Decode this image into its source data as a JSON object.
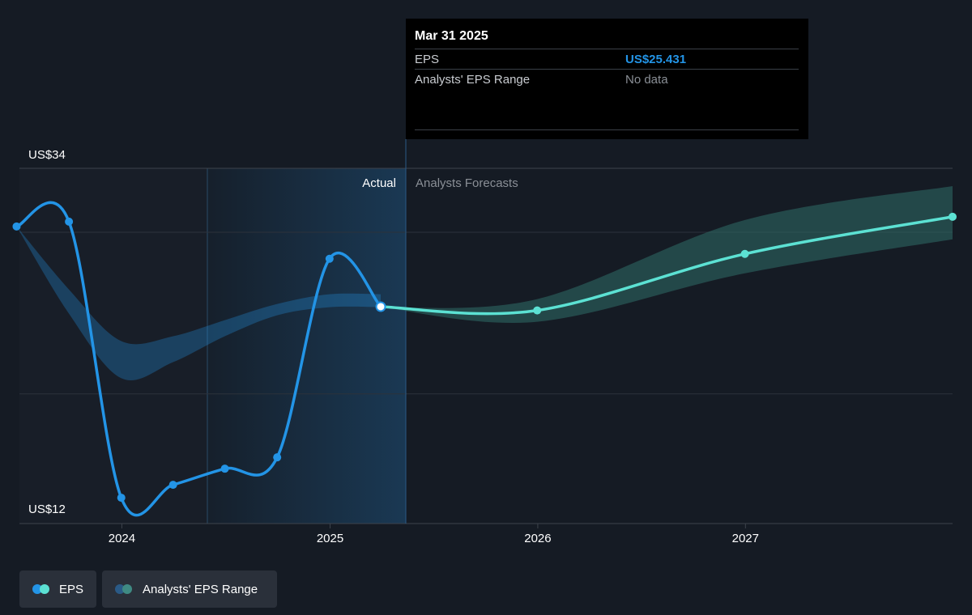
{
  "tooltip": {
    "date": "Mar 31 2025",
    "rows": [
      {
        "label": "EPS",
        "value": "US$25.431"
      },
      {
        "label": "Analysts' EPS Range",
        "value": "No data"
      }
    ]
  },
  "chart_data": {
    "type": "line",
    "x_axis_ticks": [
      "2024",
      "2025",
      "2026",
      "2027"
    ],
    "y_axis_labels": [
      "US$34",
      "US$12"
    ],
    "ylim": [
      12,
      34
    ],
    "regions": {
      "actual_label": "Actual",
      "forecast_label": "Analysts Forecasts"
    },
    "series": [
      {
        "name": "EPS",
        "segment": "actual",
        "color": "#2394e6",
        "points": [
          {
            "x": "2023-06-30",
            "y": 30.4
          },
          {
            "x": "2023-09-30",
            "y": 30.7
          },
          {
            "x": "2023-12-31",
            "y": 13.6
          },
          {
            "x": "2024-03-31",
            "y": 14.4
          },
          {
            "x": "2024-06-30",
            "y": 15.4
          },
          {
            "x": "2024-09-30",
            "y": 16.1
          },
          {
            "x": "2024-12-31",
            "y": 28.4
          },
          {
            "x": "2025-03-31",
            "y": 25.431
          }
        ]
      },
      {
        "name": "EPS",
        "segment": "forecast",
        "color": "#5ce1d3",
        "points": [
          {
            "x": "2025-03-31",
            "y": 25.431
          },
          {
            "x": "2025-12-31",
            "y": 25.2
          },
          {
            "x": "2026-12-31",
            "y": 28.7
          },
          {
            "x": "2027-12-31",
            "y": 31.0
          }
        ]
      }
    ],
    "ranges": [
      {
        "name": "Analysts' EPS Range",
        "segment": "past",
        "color": "#2394e6",
        "points": [
          {
            "x": "2023-06-30",
            "low": 30.4,
            "high": 30.4
          },
          {
            "x": "2023-09-30",
            "low": 25.0,
            "high": 26.5
          },
          {
            "x": "2023-12-31",
            "low": 21.0,
            "high": 23.3
          },
          {
            "x": "2024-03-31",
            "low": 22.0,
            "high": 23.6
          },
          {
            "x": "2024-06-30",
            "low": 23.6,
            "high": 24.6
          },
          {
            "x": "2024-09-30",
            "low": 24.9,
            "high": 25.6
          },
          {
            "x": "2024-12-31",
            "low": 25.4,
            "high": 26.2
          },
          {
            "x": "2025-03-31",
            "low": 25.4,
            "high": 26.2
          }
        ]
      },
      {
        "name": "Analysts' EPS Range",
        "segment": "forecast",
        "color": "#5ce1d3",
        "points": [
          {
            "x": "2025-03-31",
            "low": 25.4,
            "high": 25.4
          },
          {
            "x": "2025-12-31",
            "low": 24.5,
            "high": 25.9
          },
          {
            "x": "2026-12-31",
            "low": 27.5,
            "high": 30.8
          },
          {
            "x": "2027-12-31",
            "low": 29.6,
            "high": 32.9
          }
        ]
      }
    ],
    "grid": true,
    "legend": {
      "position": "bottom-left",
      "entries": [
        "EPS",
        "Analysts' EPS Range"
      ]
    },
    "colors": {
      "background": "#151b24",
      "eps_past": "#2394e6",
      "eps_forecast": "#5ce1d3",
      "range_forecast": "#2f6e68",
      "highlight_region": "#1a3a56"
    }
  }
}
